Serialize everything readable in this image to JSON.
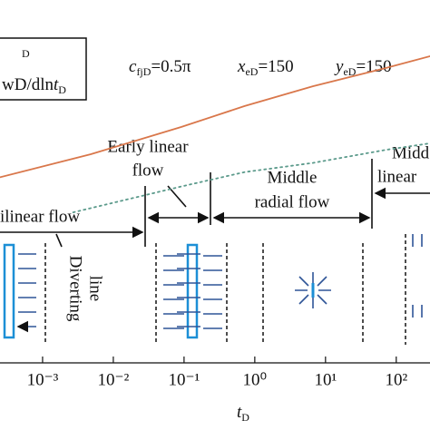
{
  "chart_data": {
    "type": "line",
    "x_label": {
      "symbol": "t",
      "sub": "D"
    },
    "legend_texts": [
      "D",
      {
        "symbol": "wD/dln",
        "tail": "t",
        "sub": "D"
      }
    ],
    "parameters": [
      {
        "symbol": "c",
        "sub": "fjD",
        "rest": "=0.5π"
      },
      {
        "symbol": "x",
        "sub": "eD",
        "rest": "=150"
      },
      {
        "symbol": "y",
        "sub": "eD",
        "rest": "=150"
      }
    ],
    "regimes": [
      [
        "ilinear flow"
      ],
      [
        "Early linear",
        "flow"
      ],
      [
        "Middle",
        "radial flow"
      ],
      [
        "Midd",
        "linear"
      ]
    ],
    "diverting_line": [
      "Diverting",
      "line"
    ],
    "log_x": true,
    "log_y": true,
    "xlim": [
      0.00025,
      300
    ],
    "ylim": [
      0.1,
      100
    ],
    "xticks": [
      {
        "value": 0.001,
        "label": "10⁻³"
      },
      {
        "value": 0.01,
        "label": "10⁻²"
      },
      {
        "value": 0.1,
        "label": "10⁻¹"
      },
      {
        "value": 1,
        "label": "10⁰"
      },
      {
        "value": 10,
        "label": "10¹"
      },
      {
        "value": 100,
        "label": "10²"
      }
    ],
    "series": [
      {
        "color": "#d9774b",
        "dash": false,
        "x": [
          0.00025,
          0.0048,
          0.091,
          0.72,
          6.6,
          71,
          300
        ],
        "values": [
          5.8,
          8.4,
          13,
          18.2,
          25,
          33.5,
          40.5
        ]
      },
      {
        "color": "#5b9a8b",
        "dash": true,
        "x": [
          0.0027,
          0.091,
          0.72,
          6.6,
          71,
          300
        ],
        "values": [
          3.3,
          5.0,
          6.3,
          7.3,
          9.0,
          10
        ]
      }
    ]
  }
}
